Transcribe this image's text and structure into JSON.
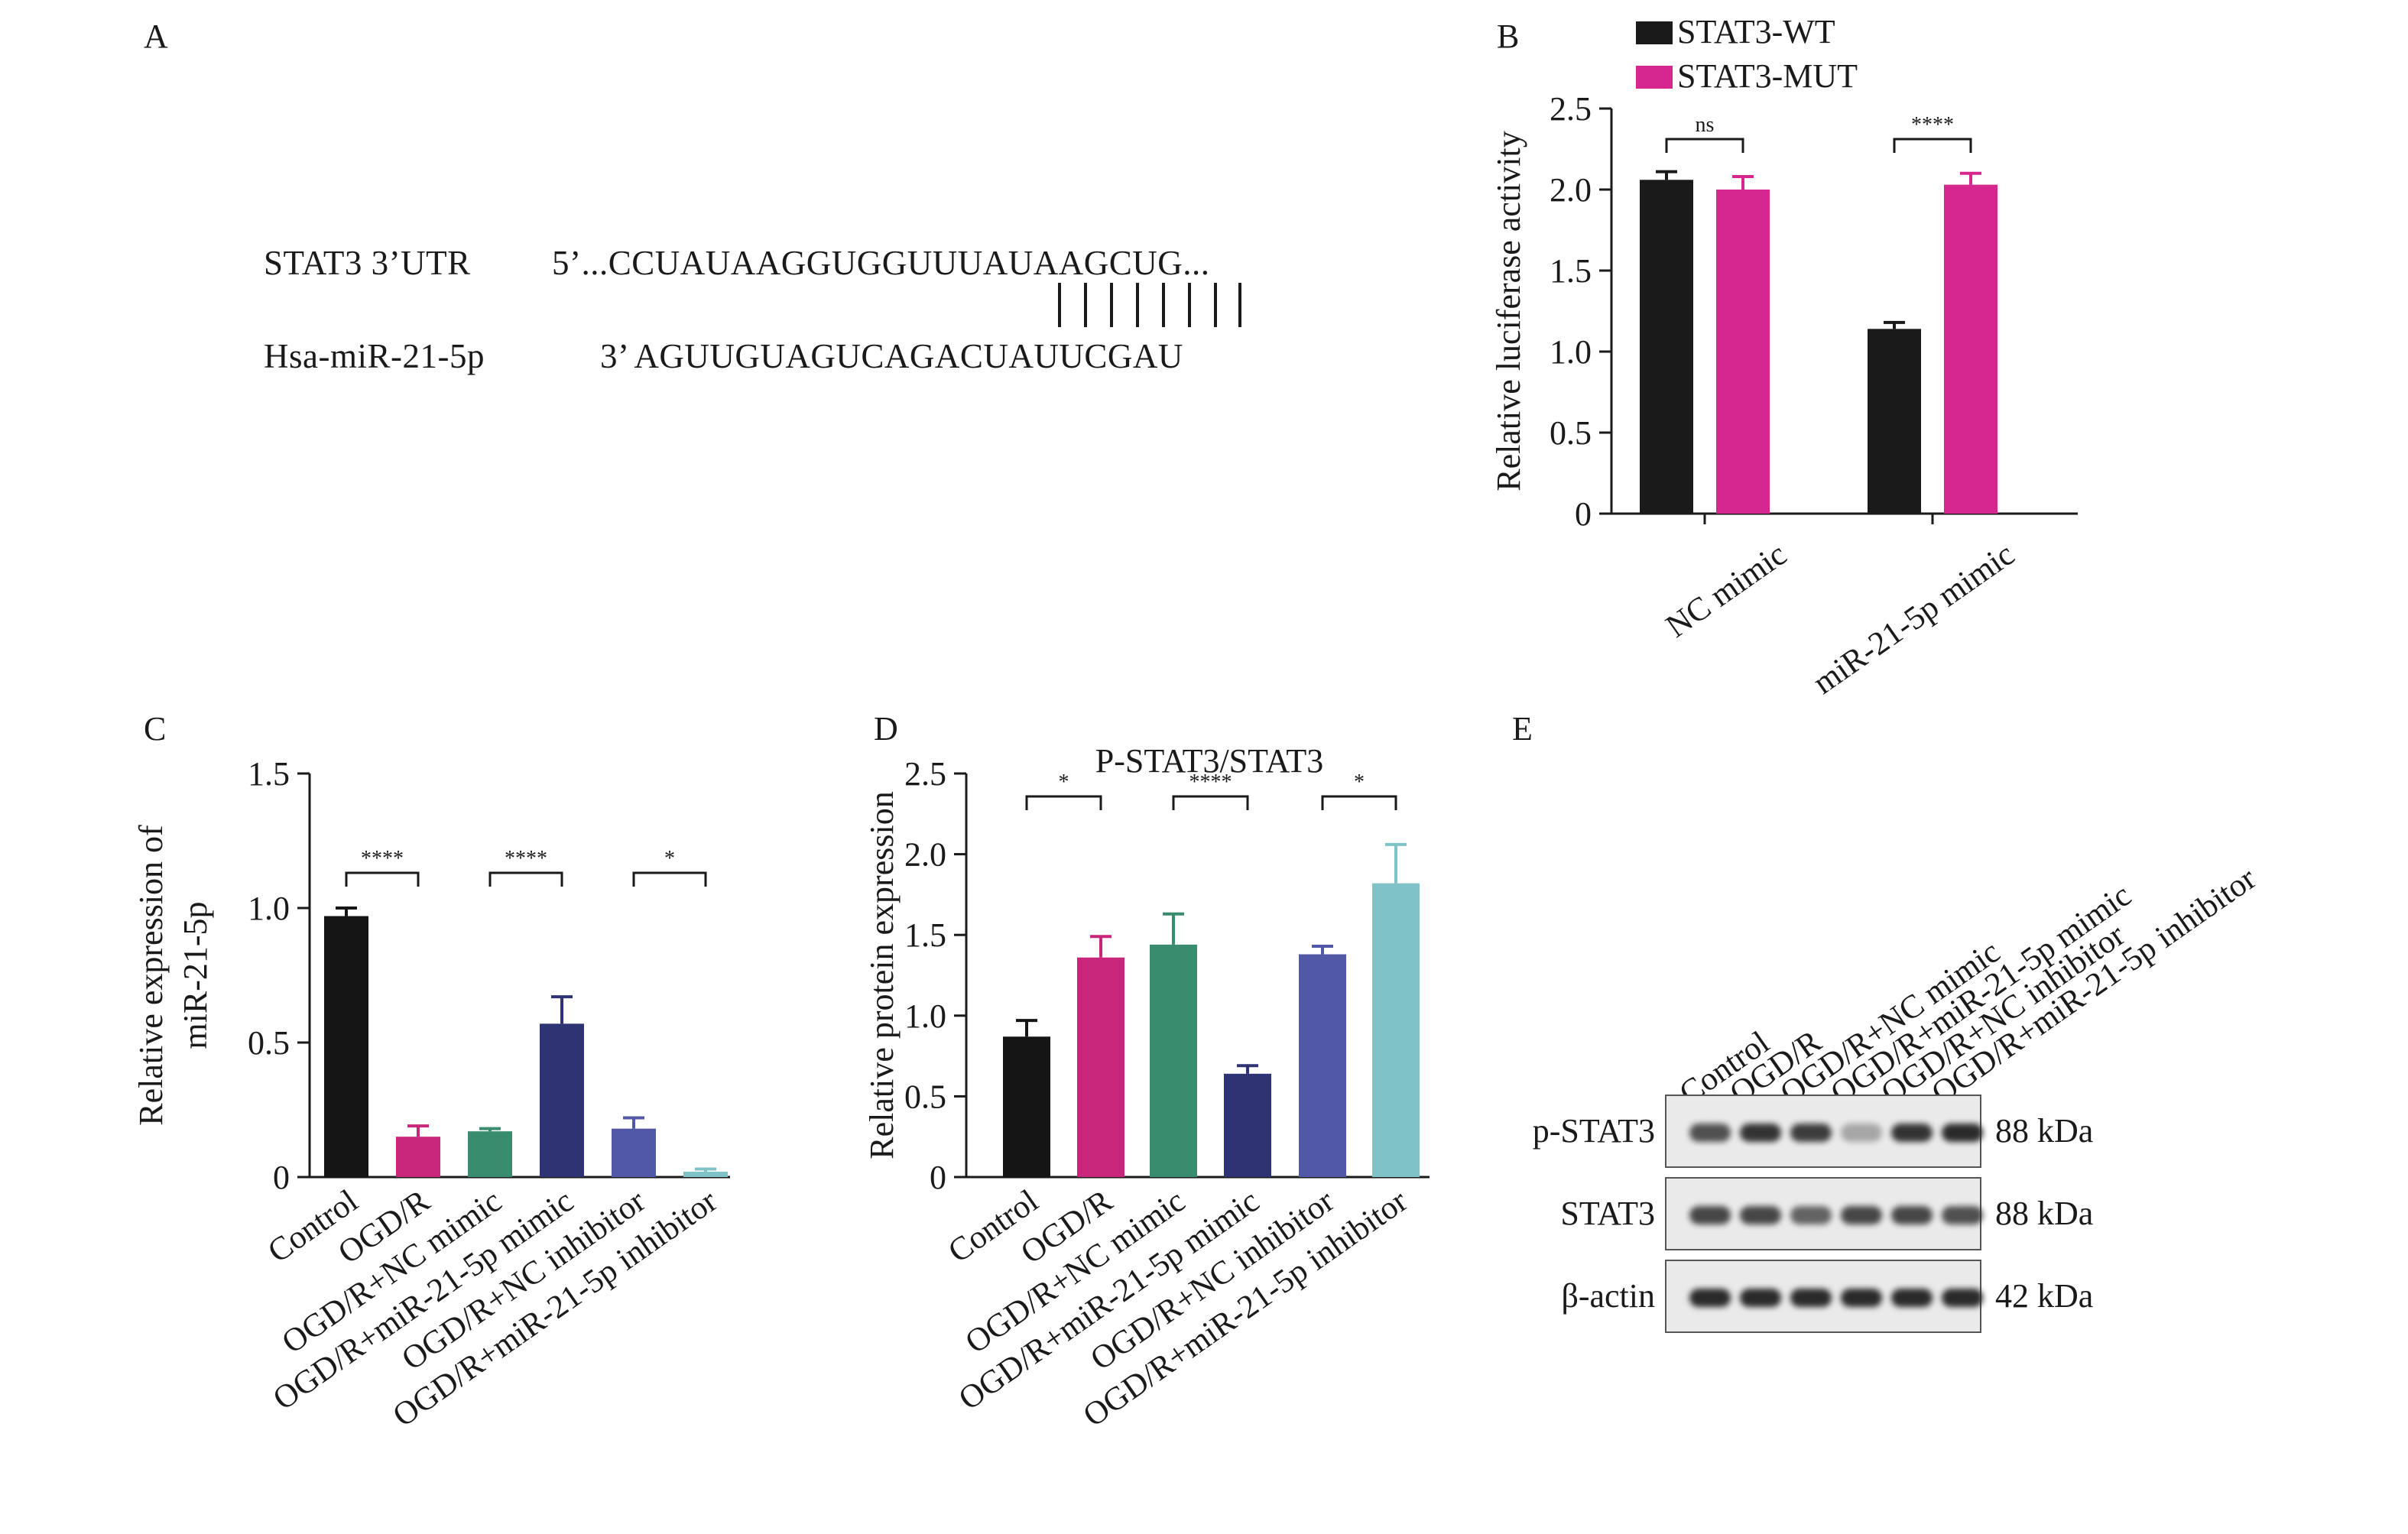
{
  "panel_labels": [
    "A",
    "B",
    "C",
    "D",
    "E"
  ],
  "panel_a": {
    "utr_label": "STAT3 3’UTR",
    "utr_seq": "5’...CCUAUAAGGUGGUUUAUAAGCUG...",
    "mir_label": "Hsa-miR-21-5p",
    "mir_seq": "3’ AGUUGUAGUCAGACUAUUCGAU"
  },
  "chart_data": [
    {
      "panel": "B",
      "type": "bar",
      "categories": [
        "NC mimic",
        "miR-21-5p mimic"
      ],
      "series": [
        {
          "name": "STAT3-WT",
          "color": "#1a1a1a",
          "values": [
            2.06,
            1.14
          ],
          "errors": [
            0.05,
            0.04
          ]
        },
        {
          "name": "STAT3-MUT",
          "color": "#d6278e",
          "values": [
            2.0,
            2.03
          ],
          "errors": [
            0.08,
            0.07
          ]
        }
      ],
      "title": "",
      "xlabel": "",
      "ylabel": "Relative luciferase activity",
      "ylim": [
        0,
        2.5
      ],
      "yticks": [
        "0",
        "0.5",
        "1.0",
        "1.5",
        "2.0",
        "2.5"
      ],
      "legend_position": "top",
      "significance": [
        {
          "label": "ns",
          "from": "NC mimic STAT3-WT",
          "to": "NC mimic STAT3-MUT"
        },
        {
          "label": "****",
          "from": "miR-21-5p mimic STAT3-WT",
          "to": "miR-21-5p mimic STAT3-MUT"
        }
      ]
    },
    {
      "panel": "C",
      "type": "bar",
      "categories": [
        "Control",
        "OGD/R",
        "OGD/R+NC mimic",
        "OGD/R+miR-21-5p mimic",
        "OGD/R+NC inhibitor",
        "OGD/R+miR-21-5p inhibitor"
      ],
      "colors": [
        "#151515",
        "#c8267a",
        "#3a8c6e",
        "#2e3373",
        "#5158a6",
        "#7fc3c6"
      ],
      "values": [
        0.97,
        0.15,
        0.17,
        0.57,
        0.18,
        0.02
      ],
      "errors": [
        0.03,
        0.04,
        0.01,
        0.1,
        0.04,
        0.01
      ],
      "title": "",
      "xlabel": "",
      "ylabel_lines": [
        "Relative expression of",
        "miR-21-5p"
      ],
      "ylim": [
        0,
        1.5
      ],
      "yticks": [
        "0",
        "0.5",
        "1.0",
        "1.5"
      ],
      "significance": [
        {
          "label": "****",
          "from": 0,
          "to": 1
        },
        {
          "label": "****",
          "from": 2,
          "to": 3
        },
        {
          "label": "*",
          "from": 4,
          "to": 5
        }
      ]
    },
    {
      "panel": "D",
      "type": "bar",
      "categories": [
        "Control",
        "OGD/R",
        "OGD/R+NC mimic",
        "OGD/R+miR-21-5p mimic",
        "OGD/R+NC inhibitor",
        "OGD/R+miR-21-5p inhibitor"
      ],
      "colors": [
        "#151515",
        "#c8267a",
        "#3a8c6e",
        "#2e3373",
        "#5158a6",
        "#7fc3c6"
      ],
      "values": [
        0.87,
        1.36,
        1.44,
        0.64,
        1.38,
        1.82
      ],
      "errors": [
        0.1,
        0.13,
        0.19,
        0.05,
        0.05,
        0.24
      ],
      "title": "P-STAT3/STAT3",
      "xlabel": "",
      "ylabel": "Relative protein expression",
      "ylim": [
        0,
        2.5
      ],
      "yticks": [
        "0",
        "0.5",
        "1.0",
        "1.5",
        "2.0",
        "2.5"
      ],
      "significance": [
        {
          "label": "*",
          "from": 0,
          "to": 1
        },
        {
          "label": "****",
          "from": 2,
          "to": 3
        },
        {
          "label": "*",
          "from": 4,
          "to": 5
        }
      ]
    }
  ],
  "panel_e": {
    "lanes": [
      "Control",
      "OGD/R",
      "OGD/R+NC mimic",
      "OGD/R+miR-21-5p mimic",
      "OGD/R+NC inhibitor",
      "OGD/R+miR-21-5p inhibitor"
    ],
    "rows": [
      {
        "label": "p-STAT3",
        "kda": "88 kDa",
        "intensity": [
          0.8,
          0.95,
          0.9,
          0.35,
          0.95,
          1.0
        ]
      },
      {
        "label": "STAT3",
        "kda": "88 kDa",
        "intensity": [
          0.85,
          0.85,
          0.7,
          0.85,
          0.85,
          0.8
        ]
      },
      {
        "label": "β-actin",
        "kda": "42 kDa",
        "intensity": [
          1.0,
          1.0,
          1.0,
          1.0,
          1.0,
          1.0
        ]
      }
    ]
  }
}
